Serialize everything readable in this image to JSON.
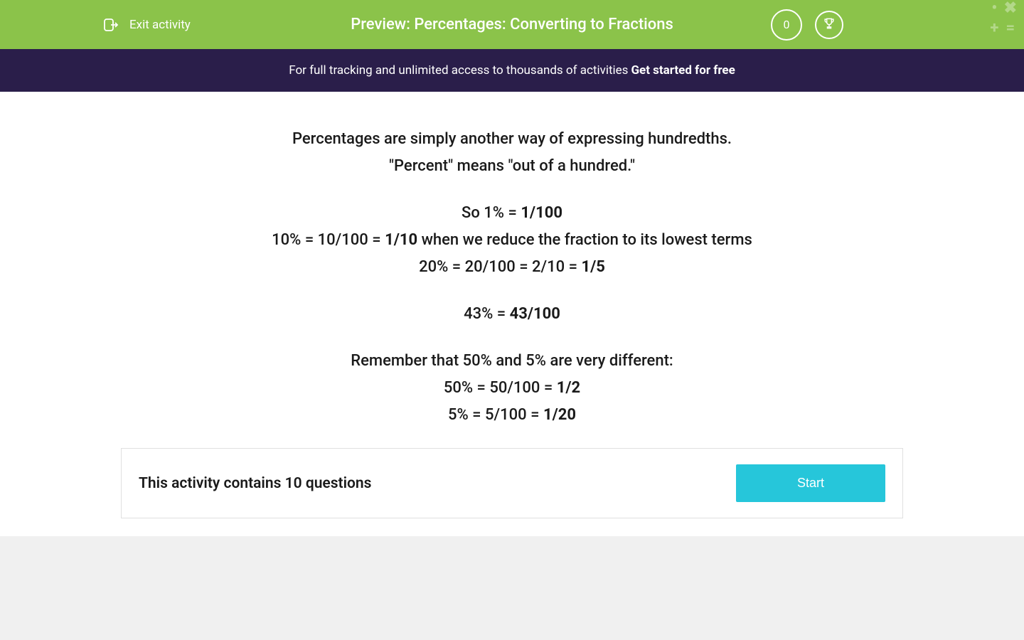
{
  "header": {
    "exit_label": "Exit activity",
    "title": "Preview: Percentages: Converting to Fractions",
    "score": "0",
    "colors": {
      "background": "#8bc34a",
      "text": "#ffffff"
    }
  },
  "banner": {
    "text": "For full tracking and unlimited access to thousands of activities ",
    "link_text": "Get started for free",
    "background_color": "#2a1e4a",
    "text_color": "#ffffff"
  },
  "content": {
    "lines": [
      {
        "type": "text",
        "parts": [
          {
            "text": "Percentages are simply another way of expressing hundredths.",
            "bold": false
          }
        ]
      },
      {
        "type": "text",
        "parts": [
          {
            "text": "\"Percent\" means \"out of a hundred.\"",
            "bold": false
          }
        ]
      },
      {
        "type": "spacer"
      },
      {
        "type": "text",
        "parts": [
          {
            "text": "So 1% = ",
            "bold": false
          },
          {
            "text": "1/100",
            "bold": true
          }
        ]
      },
      {
        "type": "text",
        "parts": [
          {
            "text": "10% = 10/100 = ",
            "bold": false
          },
          {
            "text": "1/10",
            "bold": true
          },
          {
            "text": " when we reduce the fraction to its lowest terms",
            "bold": false
          }
        ]
      },
      {
        "type": "text",
        "parts": [
          {
            "text": "20% = 20/100 = 2/10 = ",
            "bold": false
          },
          {
            "text": "1/5",
            "bold": true
          }
        ]
      },
      {
        "type": "spacer"
      },
      {
        "type": "text",
        "parts": [
          {
            "text": "43% = ",
            "bold": false
          },
          {
            "text": "43/100",
            "bold": true
          }
        ]
      },
      {
        "type": "spacer"
      },
      {
        "type": "text",
        "parts": [
          {
            "text": "Remember that 50% and 5% are very different:",
            "bold": false
          }
        ]
      },
      {
        "type": "text",
        "parts": [
          {
            "text": "50% = 50/100 = ",
            "bold": false
          },
          {
            "text": "1/2",
            "bold": true
          }
        ]
      },
      {
        "type": "text",
        "parts": [
          {
            "text": "5% = 5/100 = ",
            "bold": false
          },
          {
            "text": "1/20",
            "bold": true
          }
        ]
      }
    ],
    "text_color": "#1a1a1a",
    "font_size": 22
  },
  "action_bar": {
    "question_count_text": "This activity contains 10 questions",
    "start_label": "Start",
    "button_color": "#26c6da",
    "border_color": "#e0e0e0"
  },
  "icons": {
    "math_symbols": [
      "•",
      "✖",
      "+",
      "="
    ]
  }
}
